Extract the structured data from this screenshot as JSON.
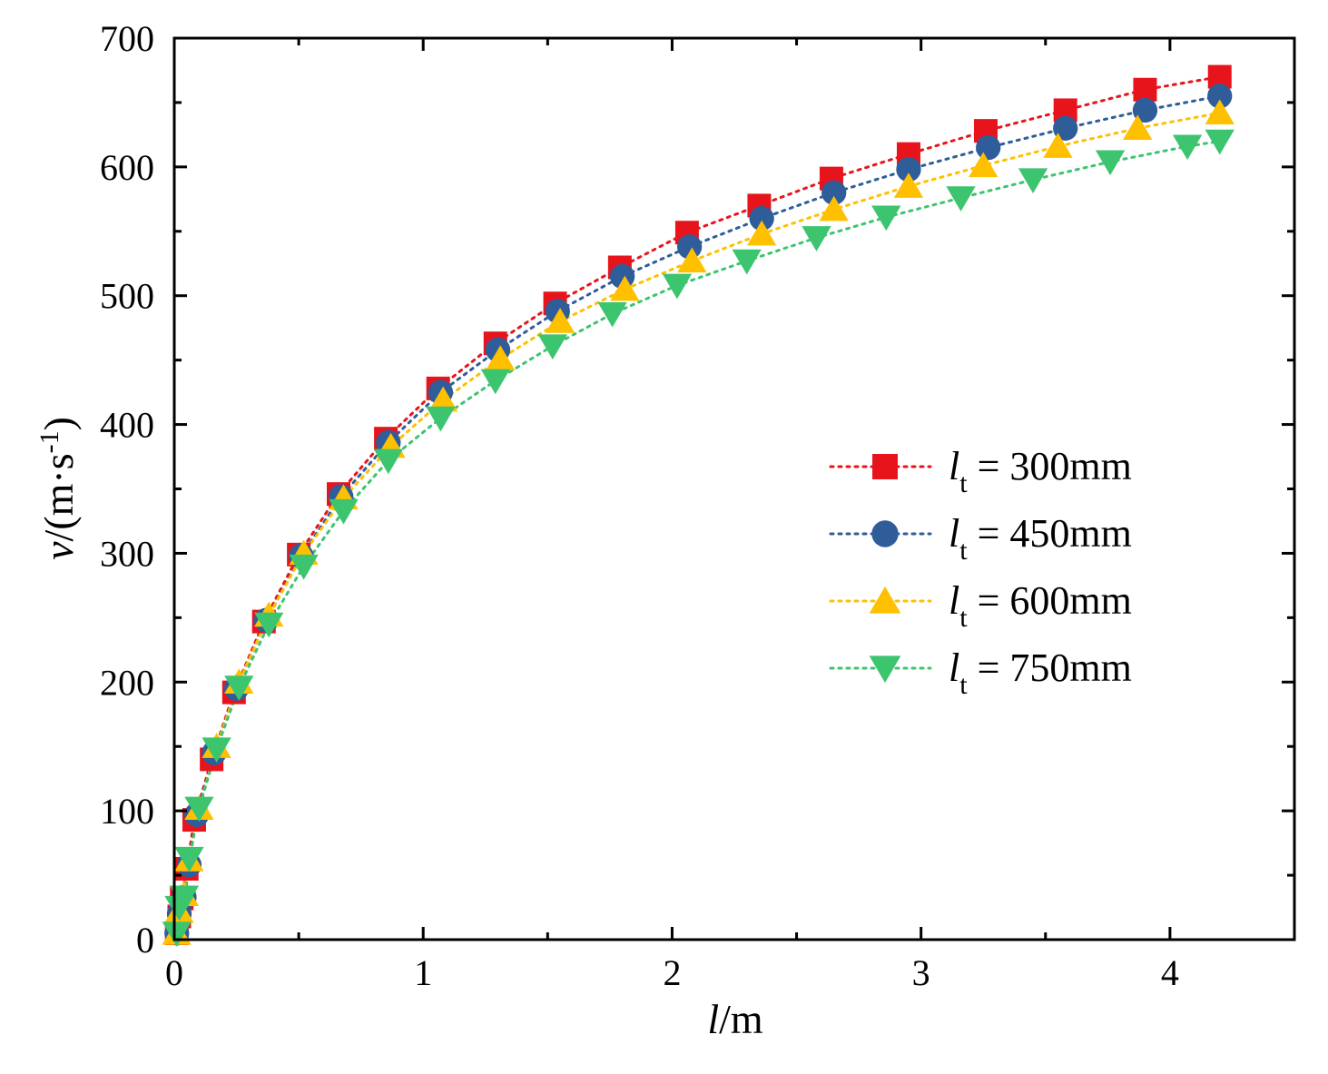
{
  "chart_data": {
    "type": "line",
    "title": "",
    "xlabel": {
      "italic": "l",
      "rest": "/m"
    },
    "ylabel": {
      "italic": "v",
      "rest": "/(m·s",
      "sup": "-1",
      "close": ")"
    },
    "xlim": [
      0,
      4.5
    ],
    "ylim": [
      0,
      700
    ],
    "xticks": [
      0,
      1,
      2,
      3,
      4
    ],
    "yticks": [
      0,
      100,
      200,
      300,
      400,
      500,
      600,
      700
    ],
    "xtick_labels": [
      "0",
      "1",
      "2",
      "3",
      "4"
    ],
    "ytick_labels": [
      "0",
      "100",
      "200",
      "300",
      "400",
      "500",
      "600",
      "700"
    ],
    "grid": false,
    "legend_position": "center-right",
    "series": [
      {
        "name": "l_t = 300mm",
        "label_italic": "l",
        "label_sub": "t",
        "label_rest": " = 300mm",
        "color": "#e8141c",
        "marker": "square",
        "x": [
          0.01,
          0.02,
          0.03,
          0.05,
          0.08,
          0.15,
          0.24,
          0.36,
          0.5,
          0.66,
          0.85,
          1.06,
          1.29,
          1.53,
          1.79,
          2.06,
          2.35,
          2.64,
          2.95,
          3.26,
          3.58,
          3.9,
          4.2
        ],
        "y": [
          5,
          18,
          32,
          55,
          93,
          140,
          192,
          247,
          299,
          346,
          389,
          428,
          463,
          494,
          522,
          549,
          570,
          591,
          610,
          628,
          644,
          660,
          670
        ]
      },
      {
        "name": "l_t = 450mm",
        "label_italic": "l",
        "label_sub": "t",
        "label_rest": " = 450mm",
        "color": "#2e5d9a",
        "marker": "circle",
        "x": [
          0.01,
          0.02,
          0.04,
          0.06,
          0.09,
          0.16,
          0.25,
          0.37,
          0.51,
          0.67,
          0.86,
          1.07,
          1.3,
          1.54,
          1.8,
          2.07,
          2.36,
          2.65,
          2.95,
          3.27,
          3.58,
          3.9,
          4.2
        ],
        "y": [
          5,
          20,
          33,
          58,
          97,
          145,
          195,
          248,
          298,
          344,
          386,
          425,
          458,
          488,
          515,
          538,
          560,
          580,
          598,
          615,
          630,
          644,
          655
        ]
      },
      {
        "name": "l_t = 600mm",
        "label_italic": "l",
        "label_sub": "t",
        "label_rest": " = 600mm",
        "color": "#ffc000",
        "marker": "triangle-up",
        "x": [
          0.01,
          0.02,
          0.04,
          0.06,
          0.1,
          0.17,
          0.26,
          0.38,
          0.52,
          0.68,
          0.87,
          1.08,
          1.31,
          1.55,
          1.81,
          2.08,
          2.36,
          2.65,
          2.95,
          3.25,
          3.55,
          3.87,
          4.2
        ],
        "y": [
          5,
          22,
          35,
          62,
          102,
          150,
          200,
          252,
          300,
          343,
          383,
          419,
          451,
          480,
          505,
          527,
          548,
          567,
          585,
          601,
          616,
          630,
          642
        ]
      },
      {
        "name": "l_t = 750mm",
        "label_italic": "l",
        "label_sub": "t",
        "label_rest": " = 750mm",
        "color": "#3cc46e",
        "marker": "triangle-down",
        "x": [
          0.01,
          0.02,
          0.04,
          0.06,
          0.1,
          0.17,
          0.26,
          0.38,
          0.52,
          0.68,
          0.86,
          1.07,
          1.29,
          1.52,
          1.76,
          2.02,
          2.3,
          2.58,
          2.86,
          3.16,
          3.45,
          3.76,
          4.07,
          4.2
        ],
        "y": [
          5,
          25,
          33,
          63,
          102,
          148,
          196,
          245,
          290,
          333,
          372,
          405,
          434,
          461,
          486,
          508,
          527,
          545,
          561,
          576,
          590,
          604,
          616,
          620
        ]
      }
    ]
  }
}
